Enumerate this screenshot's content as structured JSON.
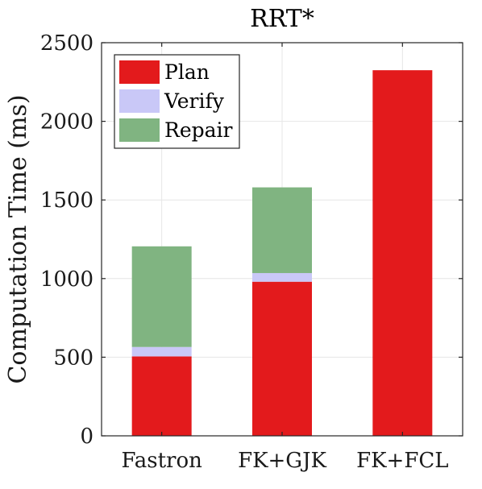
{
  "chart_data": {
    "type": "bar",
    "stacked": true,
    "title": "RRT*",
    "xlabel": "",
    "ylabel": "Computation Time (ms)",
    "ylim": [
      0,
      2500
    ],
    "yticks": [
      0,
      500,
      1000,
      1500,
      2000,
      2500
    ],
    "categories": [
      "Fastron",
      "FK+GJK",
      "FK+FCL"
    ],
    "series": [
      {
        "name": "Plan",
        "color": "#e31a1c",
        "values": [
          505,
          980,
          2325
        ]
      },
      {
        "name": "Verify",
        "color": "#c9c8f7",
        "values": [
          60,
          55,
          0
        ]
      },
      {
        "name": "Repair",
        "color": "#80b481",
        "values": [
          640,
          545,
          0
        ]
      }
    ],
    "grid": true,
    "legend_position": "top-left"
  }
}
